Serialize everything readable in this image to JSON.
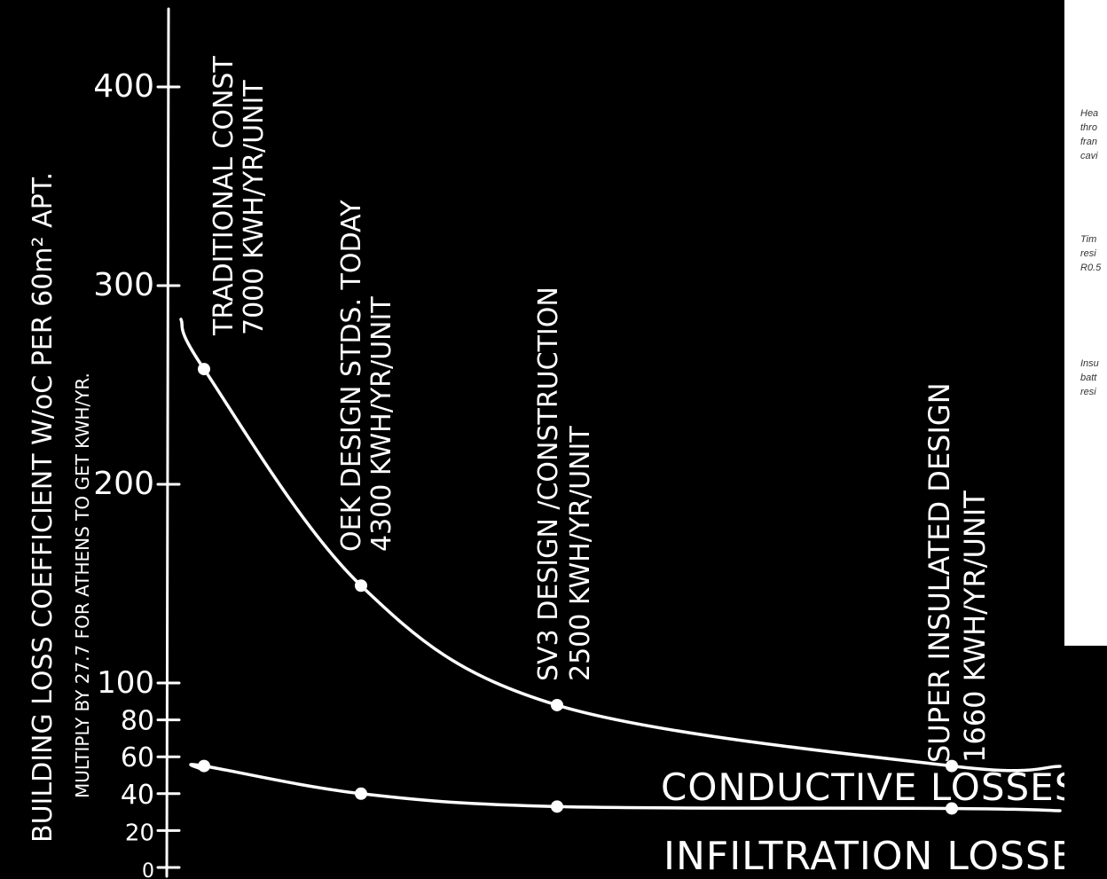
{
  "chart_data": {
    "type": "line",
    "ylabel": "BUILDING LOSS COEFFICIENT W/oC PER 60m² APT.",
    "ylabel_sub": "MULTIPLY BY 27.7 FOR ATHENS TO GET KWH/YR.",
    "y_ticks": [
      {
        "value": 0,
        "label": "0"
      },
      {
        "value": 20,
        "label": "20"
      },
      {
        "value": 40,
        "label": "40"
      },
      {
        "value": 60,
        "label": "60"
      },
      {
        "value": 80,
        "label": "80"
      },
      {
        "value": 100,
        "label": "100"
      },
      {
        "value": 200,
        "label": "200"
      },
      {
        "value": 300,
        "label": "300"
      },
      {
        "value": 400,
        "label": "400"
      }
    ],
    "ylim": [
      0,
      440
    ],
    "x": [
      1,
      2,
      3,
      4
    ],
    "designs": [
      {
        "line1": "TRADITIONAL CONST",
        "line2": "7000 KWH/YR/UNIT"
      },
      {
        "line1": "OEK DESIGN STDS. TODAY",
        "line2": "4300   KWH/YR/UNIT"
      },
      {
        "line1": "SV3 DESIGN /CONSTRUCTION",
        "line2": "2500 KWH/YR/UNIT"
      },
      {
        "line1": "SUPER INSULATED DESIGN",
        "line2": "1660 KWH/YR/UNIT"
      }
    ],
    "series": [
      {
        "name": "CONDUCTIVE LOSSES",
        "values": [
          258,
          149,
          88,
          55
        ]
      },
      {
        "name": "INFILTRATION LOSSES",
        "values": [
          55,
          40,
          33,
          32
        ]
      }
    ],
    "grid": false,
    "legend": "labels-on-curves"
  },
  "side_notes": [
    {
      "lines": [
        "Hea",
        "thro",
        "fran",
        "cavi"
      ]
    },
    {
      "lines": [
        "Tim",
        "resi",
        "R0.5"
      ]
    },
    {
      "lines": [
        "Insu",
        "batt",
        "resi"
      ]
    }
  ]
}
